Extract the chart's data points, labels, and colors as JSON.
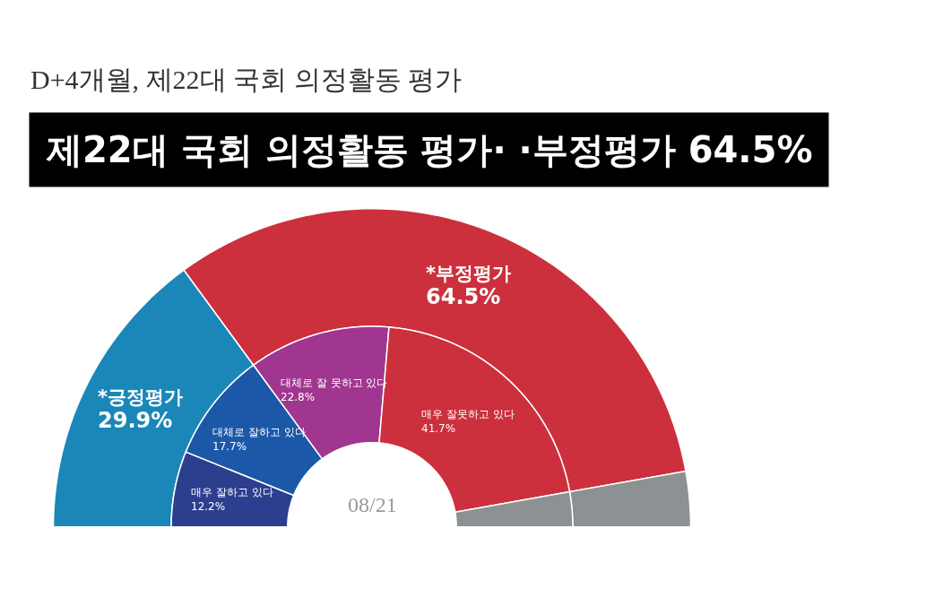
{
  "chart_data": [
    {
      "type": "donut",
      "title": "D+4개월, 제22대 국회 의정활동 평가",
      "subtitle": "제22대 국회 의정활동 평가· ·부정평가 64.5%",
      "annotations": [
        "08/21"
      ],
      "categories": [
        "*긍정평가",
        "*부정평가",
        null
      ],
      "values": [
        29.9,
        64.5,
        5.6
      ],
      "value_labels": [
        "29.9%",
        "64.5%",
        null
      ],
      "colors": [
        "#1b87b8",
        "#cc303d",
        "#8c9194"
      ]
    },
    {
      "type": "donut",
      "categories": [
        "매우 잘하고 있다",
        "대체로 잘하고 있다",
        "대체로 잘 못하고 있다",
        "매우 잘못하고 있다",
        null
      ],
      "values": [
        12.2,
        17.7,
        22.8,
        41.7,
        5.6
      ],
      "value_labels": [
        "12.2%",
        "17.7%",
        "22.8%",
        "41.7%",
        null
      ],
      "colors": [
        "#2c3f8f",
        "#1c58a8",
        "#a0368f",
        "#cc303d",
        "#8c9194"
      ]
    }
  ]
}
